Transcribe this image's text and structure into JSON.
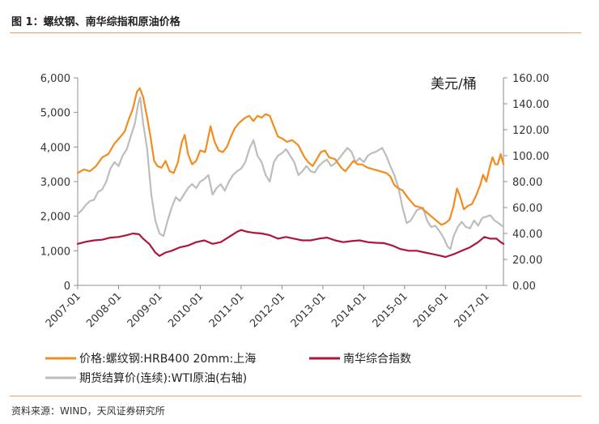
{
  "figure": {
    "title": "图 1：螺纹钢、南华综指和原油价格",
    "source": "资料来源：WIND，天风证券研究所"
  },
  "chart_data": {
    "type": "line",
    "left_axis": {
      "ylim": [
        0,
        6000
      ],
      "ticks": [
        "0",
        "1,000",
        "2,000",
        "3,000",
        "4,000",
        "5,000",
        "6,000"
      ],
      "tick_values": [
        0,
        1000,
        2000,
        3000,
        4000,
        5000,
        6000
      ]
    },
    "right_axis": {
      "unit": "美元/桶",
      "ylim": [
        0,
        160
      ],
      "ticks": [
        "0.00",
        "20.00",
        "40.00",
        "60.00",
        "80.00",
        "100.00",
        "120.00",
        "140.00",
        "160.00"
      ],
      "tick_values": [
        0,
        20,
        40,
        60,
        80,
        100,
        120,
        140,
        160
      ]
    },
    "x_axis": {
      "xlim": [
        2007.0,
        2017.42
      ],
      "ticks": [
        "2007-01",
        "2008-01",
        "2009-01",
        "2010-01",
        "2011-01",
        "2012-01",
        "2013-01",
        "2014-01",
        "2015-01",
        "2016-01",
        "2017-01"
      ],
      "tick_values": [
        2007,
        2008,
        2009,
        2010,
        2011,
        2012,
        2013,
        2014,
        2015,
        2016,
        2017
      ]
    },
    "series": [
      {
        "name": "价格:螺纹钢:HRB400 20mm:上海",
        "axis": "left",
        "color": "#f28c1f",
        "points": [
          [
            2007.0,
            3250
          ],
          [
            2007.15,
            3350
          ],
          [
            2007.3,
            3300
          ],
          [
            2007.45,
            3450
          ],
          [
            2007.6,
            3700
          ],
          [
            2007.75,
            3800
          ],
          [
            2007.9,
            4100
          ],
          [
            2008.05,
            4300
          ],
          [
            2008.15,
            4450
          ],
          [
            2008.25,
            4800
          ],
          [
            2008.35,
            5100
          ],
          [
            2008.45,
            5600
          ],
          [
            2008.52,
            5700
          ],
          [
            2008.6,
            5450
          ],
          [
            2008.7,
            4850
          ],
          [
            2008.78,
            4300
          ],
          [
            2008.87,
            3600
          ],
          [
            2008.95,
            3450
          ],
          [
            2009.05,
            3400
          ],
          [
            2009.15,
            3600
          ],
          [
            2009.25,
            3300
          ],
          [
            2009.35,
            3250
          ],
          [
            2009.45,
            3550
          ],
          [
            2009.55,
            4150
          ],
          [
            2009.62,
            4350
          ],
          [
            2009.7,
            3800
          ],
          [
            2009.8,
            3500
          ],
          [
            2009.9,
            3600
          ],
          [
            2010.0,
            3900
          ],
          [
            2010.12,
            3850
          ],
          [
            2010.25,
            4600
          ],
          [
            2010.35,
            4150
          ],
          [
            2010.45,
            3900
          ],
          [
            2010.55,
            3850
          ],
          [
            2010.65,
            4000
          ],
          [
            2010.75,
            4300
          ],
          [
            2010.85,
            4550
          ],
          [
            2010.95,
            4700
          ],
          [
            2011.1,
            4850
          ],
          [
            2011.2,
            4900
          ],
          [
            2011.3,
            4750
          ],
          [
            2011.4,
            4900
          ],
          [
            2011.5,
            4850
          ],
          [
            2011.6,
            4950
          ],
          [
            2011.7,
            4900
          ],
          [
            2011.8,
            4600
          ],
          [
            2011.9,
            4300
          ],
          [
            2012.0,
            4250
          ],
          [
            2012.12,
            4150
          ],
          [
            2012.25,
            4200
          ],
          [
            2012.4,
            4050
          ],
          [
            2012.55,
            3700
          ],
          [
            2012.65,
            3550
          ],
          [
            2012.75,
            3450
          ],
          [
            2012.85,
            3650
          ],
          [
            2012.95,
            3850
          ],
          [
            2013.05,
            3900
          ],
          [
            2013.15,
            3700
          ],
          [
            2013.3,
            3650
          ],
          [
            2013.45,
            3400
          ],
          [
            2013.55,
            3300
          ],
          [
            2013.65,
            3450
          ],
          [
            2013.75,
            3600
          ],
          [
            2013.85,
            3500
          ],
          [
            2013.95,
            3500
          ],
          [
            2014.1,
            3400
          ],
          [
            2014.25,
            3350
          ],
          [
            2014.4,
            3300
          ],
          [
            2014.55,
            3250
          ],
          [
            2014.65,
            3150
          ],
          [
            2014.75,
            2900
          ],
          [
            2014.85,
            2800
          ],
          [
            2014.95,
            2750
          ],
          [
            2015.1,
            2500
          ],
          [
            2015.25,
            2300
          ],
          [
            2015.4,
            2250
          ],
          [
            2015.5,
            2150
          ],
          [
            2015.6,
            2050
          ],
          [
            2015.7,
            1950
          ],
          [
            2015.8,
            1850
          ],
          [
            2015.9,
            1750
          ],
          [
            2016.0,
            1800
          ],
          [
            2016.1,
            1900
          ],
          [
            2016.2,
            2300
          ],
          [
            2016.28,
            2800
          ],
          [
            2016.35,
            2600
          ],
          [
            2016.45,
            2200
          ],
          [
            2016.55,
            2300
          ],
          [
            2016.65,
            2350
          ],
          [
            2016.75,
            2600
          ],
          [
            2016.85,
            2900
          ],
          [
            2016.92,
            3200
          ],
          [
            2017.0,
            3000
          ],
          [
            2017.08,
            3400
          ],
          [
            2017.15,
            3700
          ],
          [
            2017.22,
            3500
          ],
          [
            2017.28,
            3500
          ],
          [
            2017.35,
            3800
          ],
          [
            2017.42,
            3500
          ]
        ]
      },
      {
        "name": "南华综合指数",
        "axis": "left",
        "color": "#b0153c",
        "points": [
          [
            2007.0,
            1200
          ],
          [
            2007.2,
            1260
          ],
          [
            2007.4,
            1300
          ],
          [
            2007.6,
            1320
          ],
          [
            2007.8,
            1380
          ],
          [
            2008.0,
            1400
          ],
          [
            2008.2,
            1450
          ],
          [
            2008.35,
            1500
          ],
          [
            2008.5,
            1480
          ],
          [
            2008.6,
            1350
          ],
          [
            2008.75,
            1200
          ],
          [
            2008.9,
            950
          ],
          [
            2009.0,
            850
          ],
          [
            2009.15,
            950
          ],
          [
            2009.3,
            1000
          ],
          [
            2009.5,
            1100
          ],
          [
            2009.7,
            1150
          ],
          [
            2009.9,
            1250
          ],
          [
            2010.1,
            1300
          ],
          [
            2010.3,
            1200
          ],
          [
            2010.5,
            1250
          ],
          [
            2010.7,
            1400
          ],
          [
            2010.9,
            1550
          ],
          [
            2011.0,
            1600
          ],
          [
            2011.15,
            1550
          ],
          [
            2011.3,
            1520
          ],
          [
            2011.5,
            1500
          ],
          [
            2011.7,
            1450
          ],
          [
            2011.9,
            1350
          ],
          [
            2012.1,
            1400
          ],
          [
            2012.3,
            1350
          ],
          [
            2012.5,
            1300
          ],
          [
            2012.7,
            1300
          ],
          [
            2012.9,
            1350
          ],
          [
            2013.1,
            1380
          ],
          [
            2013.3,
            1300
          ],
          [
            2013.5,
            1250
          ],
          [
            2013.7,
            1280
          ],
          [
            2013.9,
            1300
          ],
          [
            2014.1,
            1250
          ],
          [
            2014.3,
            1230
          ],
          [
            2014.5,
            1220
          ],
          [
            2014.7,
            1150
          ],
          [
            2014.9,
            1050
          ],
          [
            2015.1,
            1000
          ],
          [
            2015.3,
            1000
          ],
          [
            2015.5,
            950
          ],
          [
            2015.7,
            900
          ],
          [
            2015.9,
            850
          ],
          [
            2016.0,
            820
          ],
          [
            2016.2,
            900
          ],
          [
            2016.4,
            1000
          ],
          [
            2016.6,
            1100
          ],
          [
            2016.8,
            1250
          ],
          [
            2016.95,
            1400
          ],
          [
            2017.1,
            1350
          ],
          [
            2017.25,
            1350
          ],
          [
            2017.35,
            1250
          ],
          [
            2017.42,
            1200
          ]
        ]
      },
      {
        "name": "期货结算价(连续):WTI原油(右轴)",
        "axis": "right",
        "color": "#bdbdbd",
        "points": [
          [
            2007.0,
            55
          ],
          [
            2007.1,
            58
          ],
          [
            2007.2,
            62
          ],
          [
            2007.3,
            65
          ],
          [
            2007.4,
            66
          ],
          [
            2007.5,
            72
          ],
          [
            2007.6,
            74
          ],
          [
            2007.7,
            80
          ],
          [
            2007.8,
            90
          ],
          [
            2007.9,
            95
          ],
          [
            2008.0,
            92
          ],
          [
            2008.1,
            100
          ],
          [
            2008.2,
            105
          ],
          [
            2008.3,
            115
          ],
          [
            2008.4,
            125
          ],
          [
            2008.48,
            140
          ],
          [
            2008.53,
            145
          ],
          [
            2008.6,
            125
          ],
          [
            2008.7,
            105
          ],
          [
            2008.8,
            70
          ],
          [
            2008.9,
            50
          ],
          [
            2009.0,
            40
          ],
          [
            2009.1,
            38
          ],
          [
            2009.2,
            50
          ],
          [
            2009.3,
            60
          ],
          [
            2009.4,
            68
          ],
          [
            2009.5,
            65
          ],
          [
            2009.6,
            70
          ],
          [
            2009.7,
            75
          ],
          [
            2009.8,
            78
          ],
          [
            2009.9,
            75
          ],
          [
            2010.0,
            80
          ],
          [
            2010.1,
            82
          ],
          [
            2010.2,
            85
          ],
          [
            2010.3,
            70
          ],
          [
            2010.4,
            75
          ],
          [
            2010.5,
            78
          ],
          [
            2010.6,
            73
          ],
          [
            2010.7,
            80
          ],
          [
            2010.8,
            85
          ],
          [
            2010.9,
            88
          ],
          [
            2011.0,
            90
          ],
          [
            2011.1,
            95
          ],
          [
            2011.2,
            105
          ],
          [
            2011.3,
            112
          ],
          [
            2011.4,
            100
          ],
          [
            2011.5,
            95
          ],
          [
            2011.6,
            85
          ],
          [
            2011.7,
            80
          ],
          [
            2011.8,
            95
          ],
          [
            2011.9,
            100
          ],
          [
            2012.0,
            102
          ],
          [
            2012.1,
            105
          ],
          [
            2012.2,
            100
          ],
          [
            2012.3,
            95
          ],
          [
            2012.4,
            85
          ],
          [
            2012.5,
            88
          ],
          [
            2012.6,
            92
          ],
          [
            2012.7,
            88
          ],
          [
            2012.8,
            87
          ],
          [
            2012.9,
            92
          ],
          [
            2013.0,
            95
          ],
          [
            2013.1,
            97
          ],
          [
            2013.2,
            92
          ],
          [
            2013.3,
            94
          ],
          [
            2013.4,
            98
          ],
          [
            2013.5,
            102
          ],
          [
            2013.6,
            106
          ],
          [
            2013.7,
            103
          ],
          [
            2013.8,
            95
          ],
          [
            2013.9,
            98
          ],
          [
            2014.0,
            95
          ],
          [
            2014.1,
            100
          ],
          [
            2014.2,
            102
          ],
          [
            2014.3,
            103
          ],
          [
            2014.45,
            106
          ],
          [
            2014.55,
            100
          ],
          [
            2014.65,
            92
          ],
          [
            2014.75,
            85
          ],
          [
            2014.85,
            75
          ],
          [
            2014.95,
            60
          ],
          [
            2015.05,
            48
          ],
          [
            2015.15,
            50
          ],
          [
            2015.3,
            58
          ],
          [
            2015.45,
            60
          ],
          [
            2015.55,
            50
          ],
          [
            2015.65,
            45
          ],
          [
            2015.75,
            46
          ],
          [
            2015.85,
            42
          ],
          [
            2015.95,
            37
          ],
          [
            2016.05,
            30
          ],
          [
            2016.12,
            28
          ],
          [
            2016.2,
            38
          ],
          [
            2016.3,
            45
          ],
          [
            2016.4,
            49
          ],
          [
            2016.5,
            45
          ],
          [
            2016.6,
            44
          ],
          [
            2016.7,
            50
          ],
          [
            2016.8,
            46
          ],
          [
            2016.9,
            52
          ],
          [
            2017.0,
            53
          ],
          [
            2017.1,
            54
          ],
          [
            2017.2,
            50
          ],
          [
            2017.3,
            48
          ],
          [
            2017.42,
            45
          ]
        ]
      }
    ]
  }
}
